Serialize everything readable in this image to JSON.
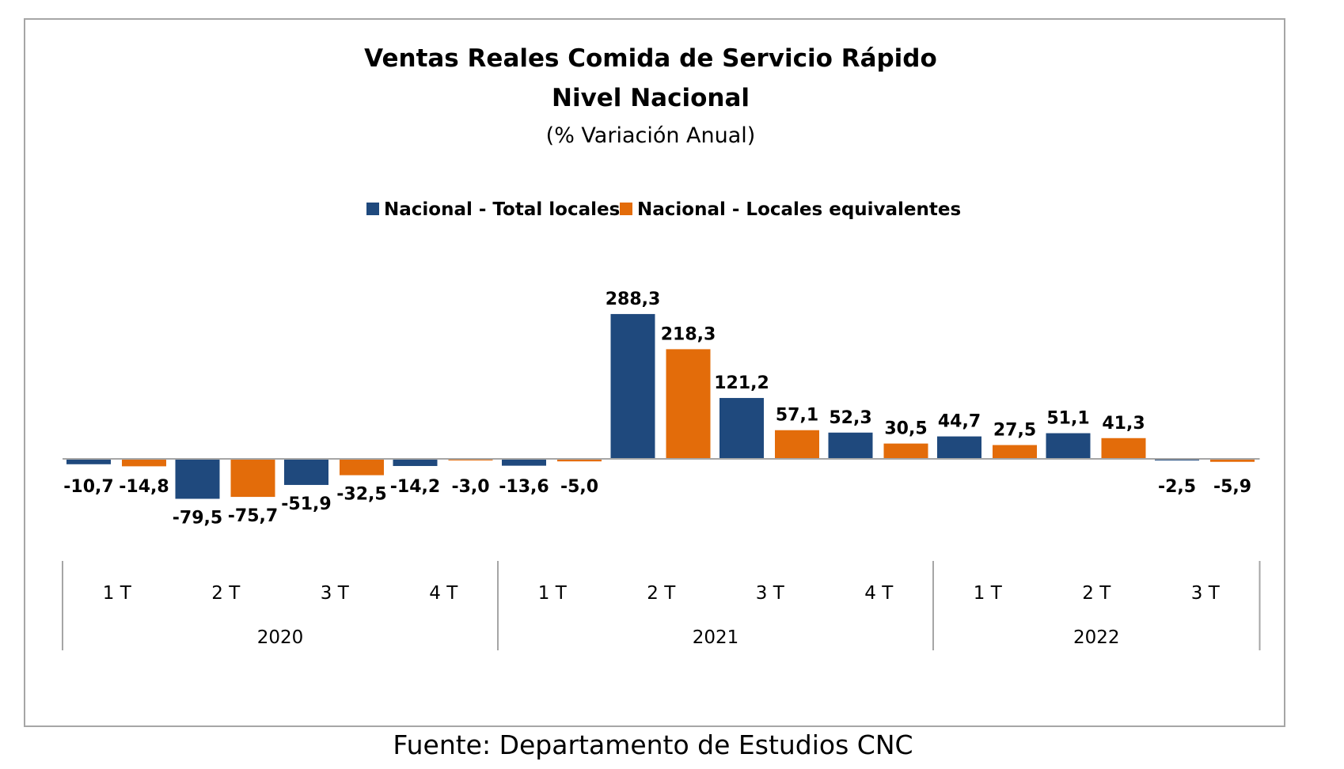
{
  "chart_data": {
    "type": "bar",
    "title": "Ventas Reales Comida de Servicio Rápido",
    "title_line2": "Nivel Nacional",
    "subtitle": "(% Variación Anual)",
    "categories": [
      "1 T",
      "2 T",
      "3 T",
      "4 T",
      "1 T",
      "2 T",
      "3 T",
      "4 T",
      "1 T",
      "2 T",
      "3 T"
    ],
    "groups": [
      {
        "label": "2020",
        "count": 4
      },
      {
        "label": "2021",
        "count": 4
      },
      {
        "label": "2022",
        "count": 3
      }
    ],
    "series": [
      {
        "name": "Nacional - Total locales",
        "color": "#1f497d",
        "values": [
          -10.7,
          -79.5,
          -51.9,
          -14.2,
          -13.6,
          288.3,
          121.2,
          52.3,
          44.7,
          51.1,
          -2.5
        ],
        "labels": [
          "-10,7",
          "-79,5",
          "-51,9",
          "-14,2",
          "-13,6",
          "288,3",
          "121,2",
          "52,3",
          "44,7",
          "51,1",
          "-2,5"
        ]
      },
      {
        "name": "Nacional - Locales equivalentes",
        "color": "#e36c0a",
        "values": [
          -14.8,
          -75.7,
          -32.5,
          -3.0,
          -5.0,
          218.3,
          57.1,
          30.5,
          27.5,
          41.3,
          -5.9
        ],
        "labels": [
          "-14,8",
          "-75,7",
          "-32,5",
          "-3,0",
          "-5,0",
          "218,3",
          "57,1",
          "30,5",
          "27,5",
          "41,3",
          "-5,9"
        ]
      }
    ],
    "legend_position": "top",
    "grid": false,
    "ylim": [
      -160,
      300
    ]
  },
  "source_text": "Fuente: Departamento de Estudios CNC"
}
